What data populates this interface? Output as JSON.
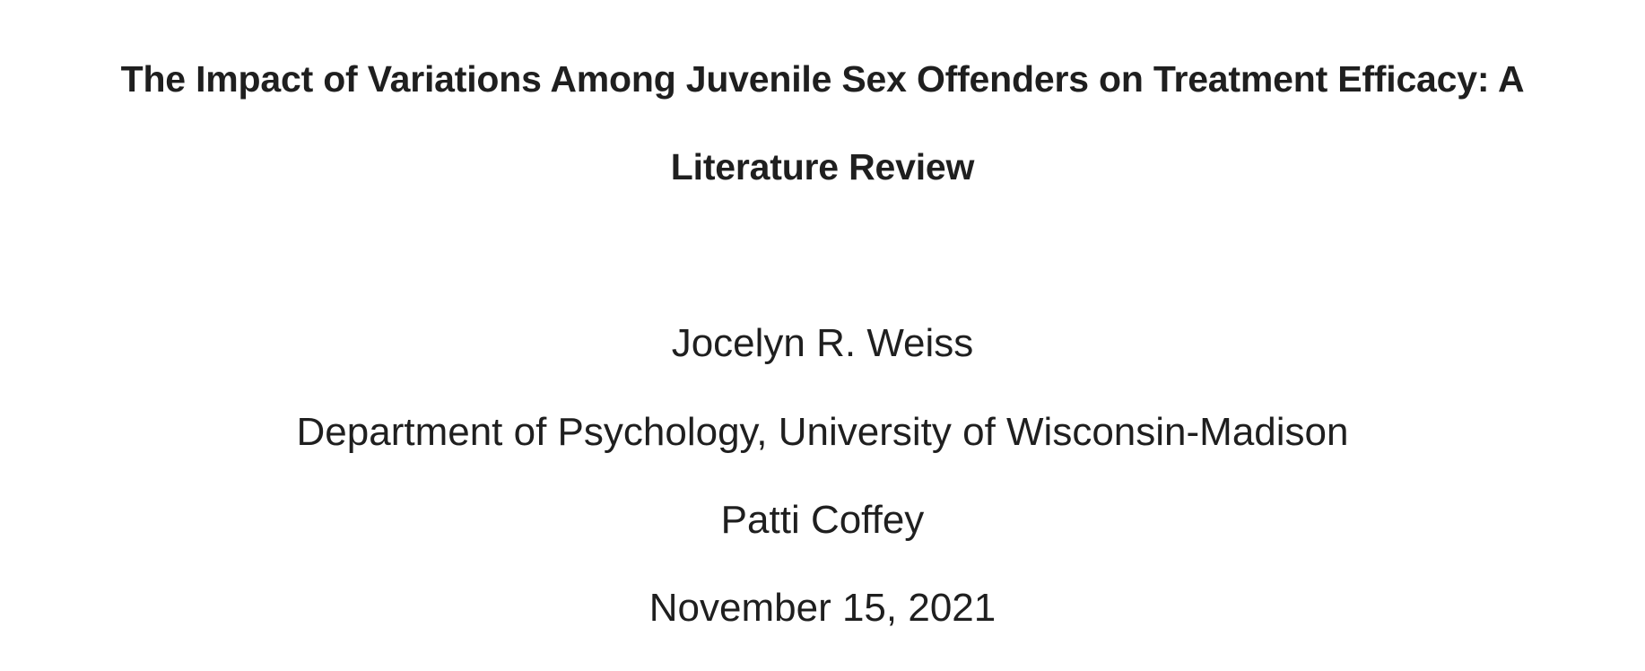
{
  "document": {
    "title_line_1": "The Impact of Variations Among Juvenile Sex Offenders on Treatment Efficacy: A",
    "title_line_2": "Literature Review",
    "author": "Jocelyn R. Weiss",
    "affiliation": "Department of Psychology, University of Wisconsin-Madison",
    "instructor": "Patti Coffey",
    "date": "November 15, 2021"
  }
}
